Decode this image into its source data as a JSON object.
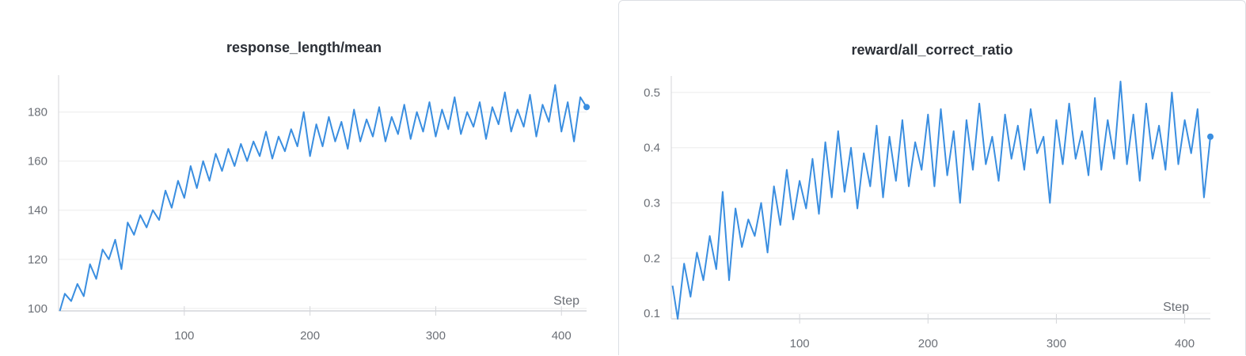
{
  "colors": {
    "line": "#3a8ee0",
    "grid": "#ececec",
    "axis": "#d4d6da",
    "text": "#6b6f76",
    "title": "#2b2f36"
  },
  "chart_data": [
    {
      "type": "line",
      "title": "response_length/mean",
      "xlabel": "Step",
      "ylabel": "",
      "xlim": [
        0,
        420
      ],
      "ylim": [
        99,
        195
      ],
      "xticks": [
        100,
        200,
        300,
        400
      ],
      "yticks": [
        100,
        120,
        140,
        160,
        180
      ],
      "grid": true,
      "legend": "none",
      "series": [
        {
          "x": [
            1,
            5,
            10,
            15,
            20,
            25,
            30,
            35,
            40,
            45,
            50,
            55,
            60,
            65,
            70,
            75,
            80,
            85,
            90,
            95,
            100,
            105,
            110,
            115,
            120,
            125,
            130,
            135,
            140,
            145,
            150,
            155,
            160,
            165,
            170,
            175,
            180,
            185,
            190,
            195,
            200,
            205,
            210,
            215,
            220,
            225,
            230,
            235,
            240,
            245,
            250,
            255,
            260,
            265,
            270,
            275,
            280,
            285,
            290,
            295,
            300,
            305,
            310,
            315,
            320,
            325,
            330,
            335,
            340,
            345,
            350,
            355,
            360,
            365,
            370,
            375,
            380,
            385,
            390,
            395,
            400,
            405,
            410,
            415,
            420
          ],
          "y": [
            99,
            106,
            103,
            110,
            105,
            118,
            112,
            124,
            120,
            128,
            116,
            135,
            130,
            138,
            133,
            140,
            136,
            148,
            141,
            152,
            145,
            158,
            149,
            160,
            152,
            163,
            156,
            165,
            158,
            167,
            160,
            168,
            162,
            172,
            161,
            170,
            164,
            173,
            166,
            180,
            162,
            175,
            166,
            178,
            168,
            176,
            165,
            181,
            168,
            177,
            170,
            182,
            168,
            178,
            171,
            183,
            169,
            180,
            172,
            184,
            170,
            181,
            173,
            186,
            171,
            180,
            174,
            184,
            169,
            182,
            175,
            188,
            172,
            181,
            174,
            187,
            170,
            183,
            176,
            191,
            172,
            184,
            168,
            186,
            182
          ]
        }
      ]
    },
    {
      "type": "line",
      "title": "reward/all_correct_ratio",
      "xlabel": "Step",
      "ylabel": "",
      "xlim": [
        0,
        420
      ],
      "ylim": [
        0.09,
        0.53
      ],
      "xticks": [
        100,
        200,
        300,
        400
      ],
      "yticks": [
        0.1,
        0.2,
        0.3,
        0.4,
        0.5
      ],
      "grid": true,
      "legend": "none",
      "series": [
        {
          "x": [
            1,
            5,
            10,
            15,
            20,
            25,
            30,
            35,
            40,
            45,
            50,
            55,
            60,
            65,
            70,
            75,
            80,
            85,
            90,
            95,
            100,
            105,
            110,
            115,
            120,
            125,
            130,
            135,
            140,
            145,
            150,
            155,
            160,
            165,
            170,
            175,
            180,
            185,
            190,
            195,
            200,
            205,
            210,
            215,
            220,
            225,
            230,
            235,
            240,
            245,
            250,
            255,
            260,
            265,
            270,
            275,
            280,
            285,
            290,
            295,
            300,
            305,
            310,
            315,
            320,
            325,
            330,
            335,
            340,
            345,
            350,
            355,
            360,
            365,
            370,
            375,
            380,
            385,
            390,
            395,
            400,
            405,
            410,
            415,
            420
          ],
          "y": [
            0.15,
            0.09,
            0.19,
            0.13,
            0.21,
            0.16,
            0.24,
            0.18,
            0.32,
            0.16,
            0.29,
            0.22,
            0.27,
            0.24,
            0.3,
            0.21,
            0.33,
            0.26,
            0.36,
            0.27,
            0.34,
            0.29,
            0.38,
            0.28,
            0.41,
            0.31,
            0.43,
            0.32,
            0.4,
            0.29,
            0.39,
            0.33,
            0.44,
            0.31,
            0.42,
            0.34,
            0.45,
            0.33,
            0.41,
            0.36,
            0.46,
            0.33,
            0.47,
            0.35,
            0.43,
            0.3,
            0.45,
            0.36,
            0.48,
            0.37,
            0.42,
            0.34,
            0.46,
            0.38,
            0.44,
            0.36,
            0.47,
            0.39,
            0.42,
            0.3,
            0.45,
            0.37,
            0.48,
            0.38,
            0.43,
            0.35,
            0.49,
            0.36,
            0.45,
            0.38,
            0.52,
            0.37,
            0.46,
            0.34,
            0.48,
            0.38,
            0.44,
            0.36,
            0.5,
            0.37,
            0.45,
            0.39,
            0.47,
            0.31,
            0.42
          ]
        }
      ]
    }
  ]
}
